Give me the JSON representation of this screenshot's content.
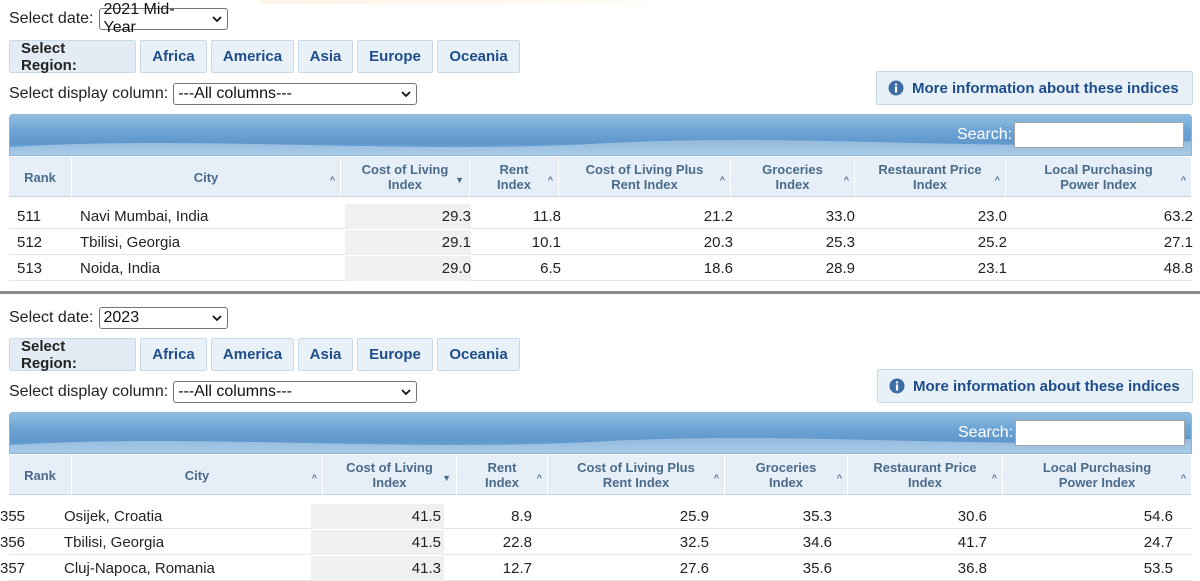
{
  "panels": [
    {
      "date_label": "Select date:",
      "date_value": "2021 Mid-Year",
      "region_label": "Select Region:",
      "regions": [
        "Africa",
        "America",
        "Asia",
        "Europe",
        "Oceania"
      ],
      "display_label": "Select display column:",
      "display_value": "---All columns---",
      "info_button": "More information about these indices",
      "search_label": "Search:",
      "columns": [
        "Rank",
        "City",
        "Cost of Living Index",
        "Rent Index",
        "Cost of Living Plus Rent Index",
        "Groceries Index",
        "Restaurant Price Index",
        "Local Purchasing Power Index"
      ],
      "rows": [
        {
          "rank": "511",
          "city": "Navi Mumbai, India",
          "col": "29.3",
          "rent": "11.8",
          "colr": "21.2",
          "groc": "33.0",
          "rest": "23.0",
          "lpp": "63.2"
        },
        {
          "rank": "512",
          "city": "Tbilisi, Georgia",
          "col": "29.1",
          "rent": "10.1",
          "colr": "20.3",
          "groc": "25.3",
          "rest": "25.2",
          "lpp": "27.1"
        },
        {
          "rank": "513",
          "city": "Noida, India",
          "col": "29.0",
          "rent": "6.5",
          "colr": "18.6",
          "groc": "28.9",
          "rest": "23.1",
          "lpp": "48.8"
        }
      ]
    },
    {
      "date_label": "Select date:",
      "date_value": "2023",
      "region_label": "Select Region:",
      "regions": [
        "Africa",
        "America",
        "Asia",
        "Europe",
        "Oceania"
      ],
      "display_label": "Select display column:",
      "display_value": "---All columns---",
      "info_button": "More information about these indices",
      "search_label": "Search:",
      "columns": [
        "Rank",
        "City",
        "Cost of Living Index",
        "Rent Index",
        "Cost of Living Plus Rent Index",
        "Groceries Index",
        "Restaurant Price Index",
        "Local Purchasing Power Index"
      ],
      "rows": [
        {
          "rank": "355",
          "city": "Osijek, Croatia",
          "col": "41.5",
          "rent": "8.9",
          "colr": "25.9",
          "groc": "35.3",
          "rest": "30.6",
          "lpp": "54.6"
        },
        {
          "rank": "356",
          "city": "Tbilisi, Georgia",
          "col": "41.5",
          "rent": "22.8",
          "colr": "32.5",
          "groc": "34.6",
          "rest": "41.7",
          "lpp": "24.7"
        },
        {
          "rank": "357",
          "city": "Cluj-Napoca, Romania",
          "col": "41.3",
          "rent": "12.7",
          "colr": "27.6",
          "groc": "35.6",
          "rest": "36.8",
          "lpp": "53.5"
        }
      ]
    }
  ]
}
